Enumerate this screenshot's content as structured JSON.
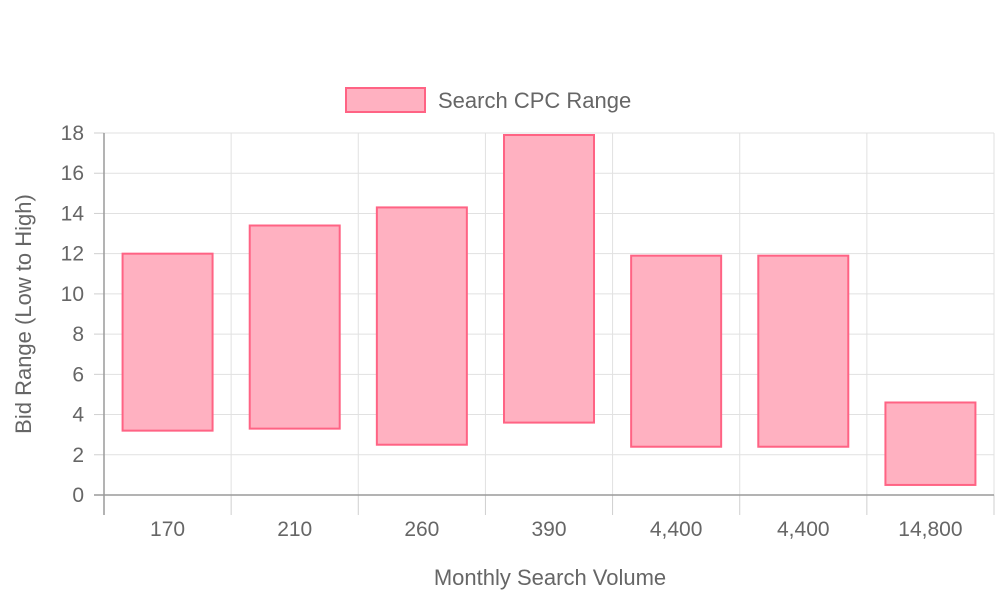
{
  "chart_data": {
    "type": "bar",
    "variant": "floating-range",
    "categories": [
      "170",
      "210",
      "260",
      "390",
      "4,400",
      "4,400",
      "14,800"
    ],
    "series": [
      {
        "name": "Search CPC Range",
        "ranges": [
          [
            3.2,
            12.0
          ],
          [
            3.3,
            13.4
          ],
          [
            2.5,
            14.3
          ],
          [
            3.6,
            17.9
          ],
          [
            2.4,
            11.9
          ],
          [
            2.4,
            11.9
          ],
          [
            0.5,
            4.6
          ]
        ],
        "fill": "#ffb1c1",
        "stroke": "#ff6384"
      }
    ],
    "xlabel": "Monthly Search Volume",
    "ylabel": "Bid Range (Low to High)",
    "ylim": [
      0,
      18
    ],
    "yticks": [
      0,
      2,
      4,
      6,
      8,
      10,
      12,
      14,
      16,
      18
    ],
    "grid": true,
    "legend": "top-center"
  }
}
